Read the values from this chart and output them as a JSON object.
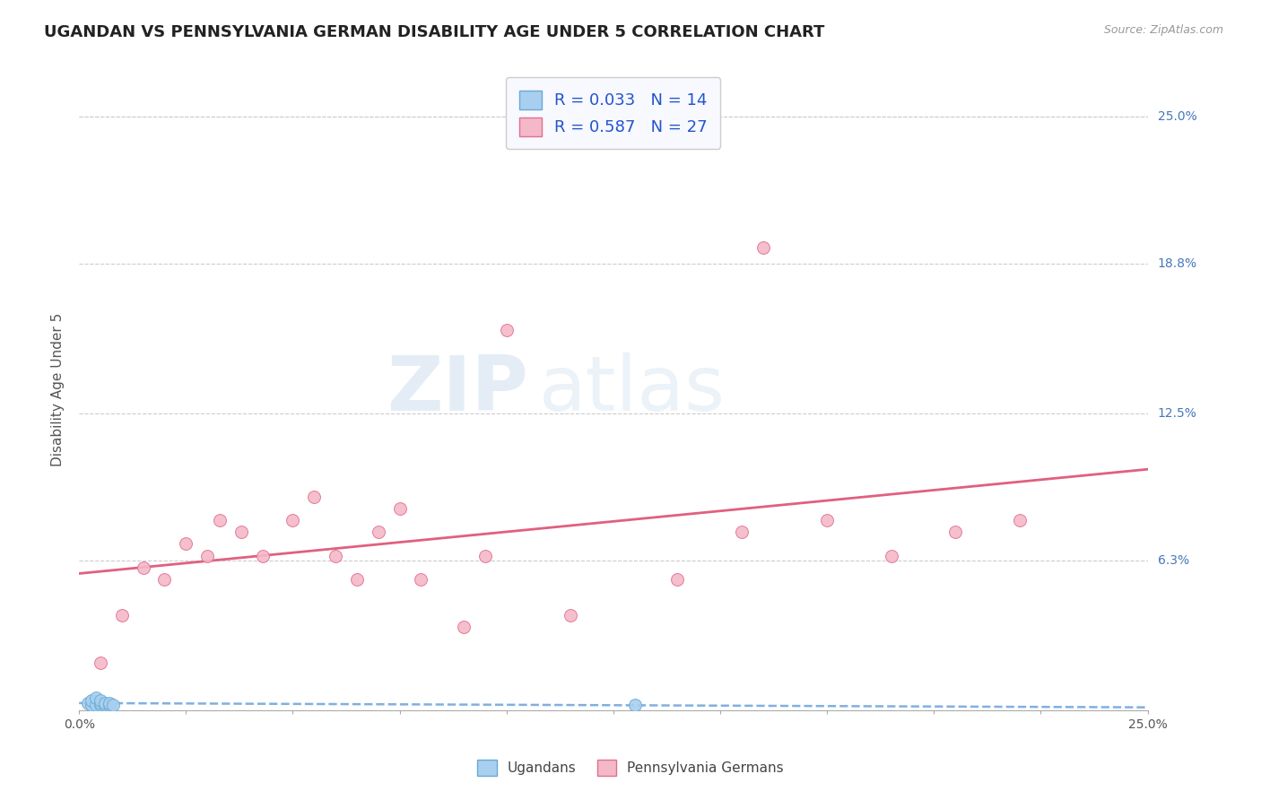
{
  "title": "UGANDAN VS PENNSYLVANIA GERMAN DISABILITY AGE UNDER 5 CORRELATION CHART",
  "source": "Source: ZipAtlas.com",
  "ylabel": "Disability Age Under 5",
  "xlim": [
    0.0,
    0.25
  ],
  "ylim": [
    0.0,
    0.27
  ],
  "yticks": [
    0.0,
    0.063,
    0.125,
    0.188,
    0.25
  ],
  "ytick_labels": [
    "",
    "6.3%",
    "12.5%",
    "18.8%",
    "25.0%"
  ],
  "ugandan_color": "#A8CFEF",
  "ugandan_edge": "#6AAAD4",
  "penn_color": "#F4B8C8",
  "penn_edge": "#E07090",
  "ugandan_R": 0.033,
  "ugandan_N": 14,
  "penn_R": 0.587,
  "penn_N": 27,
  "watermark_zip": "ZIP",
  "watermark_atlas": "atlas",
  "ugandan_x": [
    0.002,
    0.003,
    0.003,
    0.004,
    0.004,
    0.005,
    0.005,
    0.005,
    0.006,
    0.006,
    0.007,
    0.007,
    0.008,
    0.13
  ],
  "ugandan_y": [
    0.003,
    0.002,
    0.004,
    0.002,
    0.005,
    0.002,
    0.003,
    0.004,
    0.002,
    0.003,
    0.002,
    0.003,
    0.002,
    0.002
  ],
  "penn_x": [
    0.005,
    0.01,
    0.015,
    0.02,
    0.025,
    0.03,
    0.033,
    0.038,
    0.043,
    0.05,
    0.055,
    0.06,
    0.065,
    0.07,
    0.075,
    0.08,
    0.09,
    0.095,
    0.1,
    0.115,
    0.14,
    0.155,
    0.16,
    0.175,
    0.19,
    0.205,
    0.22
  ],
  "penn_y": [
    0.02,
    0.04,
    0.06,
    0.055,
    0.07,
    0.065,
    0.08,
    0.075,
    0.065,
    0.08,
    0.09,
    0.065,
    0.055,
    0.075,
    0.085,
    0.055,
    0.035,
    0.065,
    0.16,
    0.04,
    0.055,
    0.075,
    0.195,
    0.08,
    0.065,
    0.075,
    0.08
  ],
  "background_color": "#FFFFFF",
  "grid_color": "#CCCCCC",
  "title_fontsize": 13,
  "axis_label_fontsize": 11,
  "tick_fontsize": 10,
  "marker_size": 100,
  "penn_line_color": "#E06080",
  "ugandan_line_color": "#80B0E0"
}
